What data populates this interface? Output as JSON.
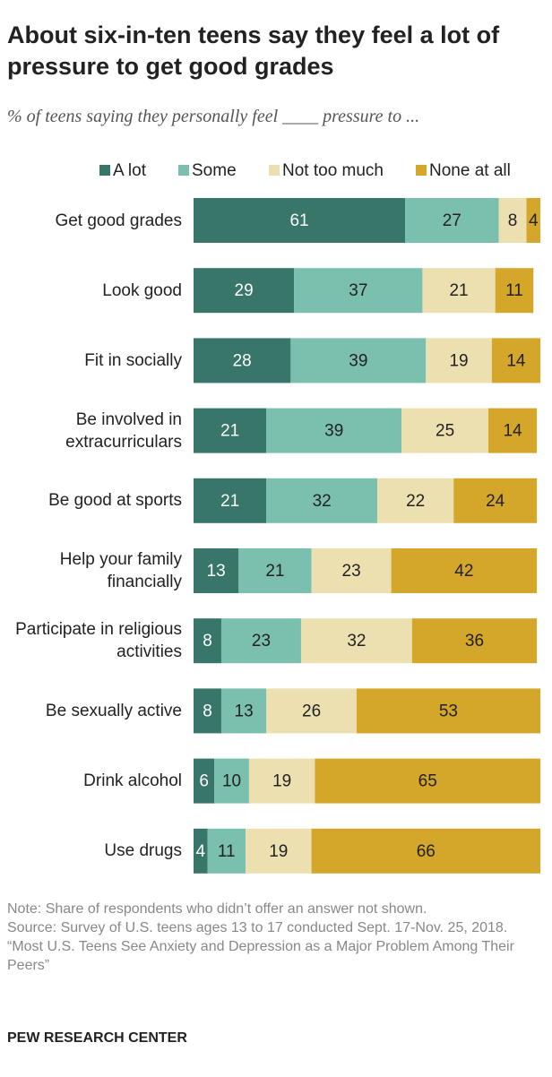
{
  "chart_data": {
    "type": "stacked-bar",
    "title": "About six-in-ten teens say they feel a lot of pressure to get good grades",
    "subtitle": "% of teens saying they personally feel ____ pressure to ...",
    "categories": [
      "Get good grades",
      "Look good",
      "Fit in socially",
      "Be involved in extracurriculars",
      "Be good at sports",
      "Help your family financially",
      "Participate in religious activities",
      "Be sexually active",
      "Drink alcohol",
      "Use drugs"
    ],
    "series": [
      {
        "name": "A lot",
        "color": "#38766a",
        "values": [
          61,
          29,
          28,
          21,
          21,
          13,
          8,
          8,
          6,
          4
        ]
      },
      {
        "name": "Some",
        "color": "#7bbfae",
        "values": [
          27,
          37,
          39,
          39,
          32,
          21,
          23,
          13,
          10,
          11
        ]
      },
      {
        "name": "Not too much",
        "color": "#ede0b0",
        "values": [
          8,
          21,
          19,
          25,
          22,
          23,
          32,
          26,
          19,
          19
        ]
      },
      {
        "name": "None at all",
        "color": "#d4a62a",
        "values": [
          4,
          11,
          14,
          14,
          24,
          42,
          36,
          53,
          65,
          66
        ]
      }
    ],
    "notes": [
      "Note: Share of respondents who didn’t offer an answer not shown.",
      "Source: Survey of U.S. teens ages 13 to 17 conducted Sept. 17-Nov. 25, 2018.",
      "“Most U.S. Teens See Anxiety and Depression as a Major Problem Among Their Peers”"
    ],
    "source": "PEW RESEARCH CENTER"
  }
}
